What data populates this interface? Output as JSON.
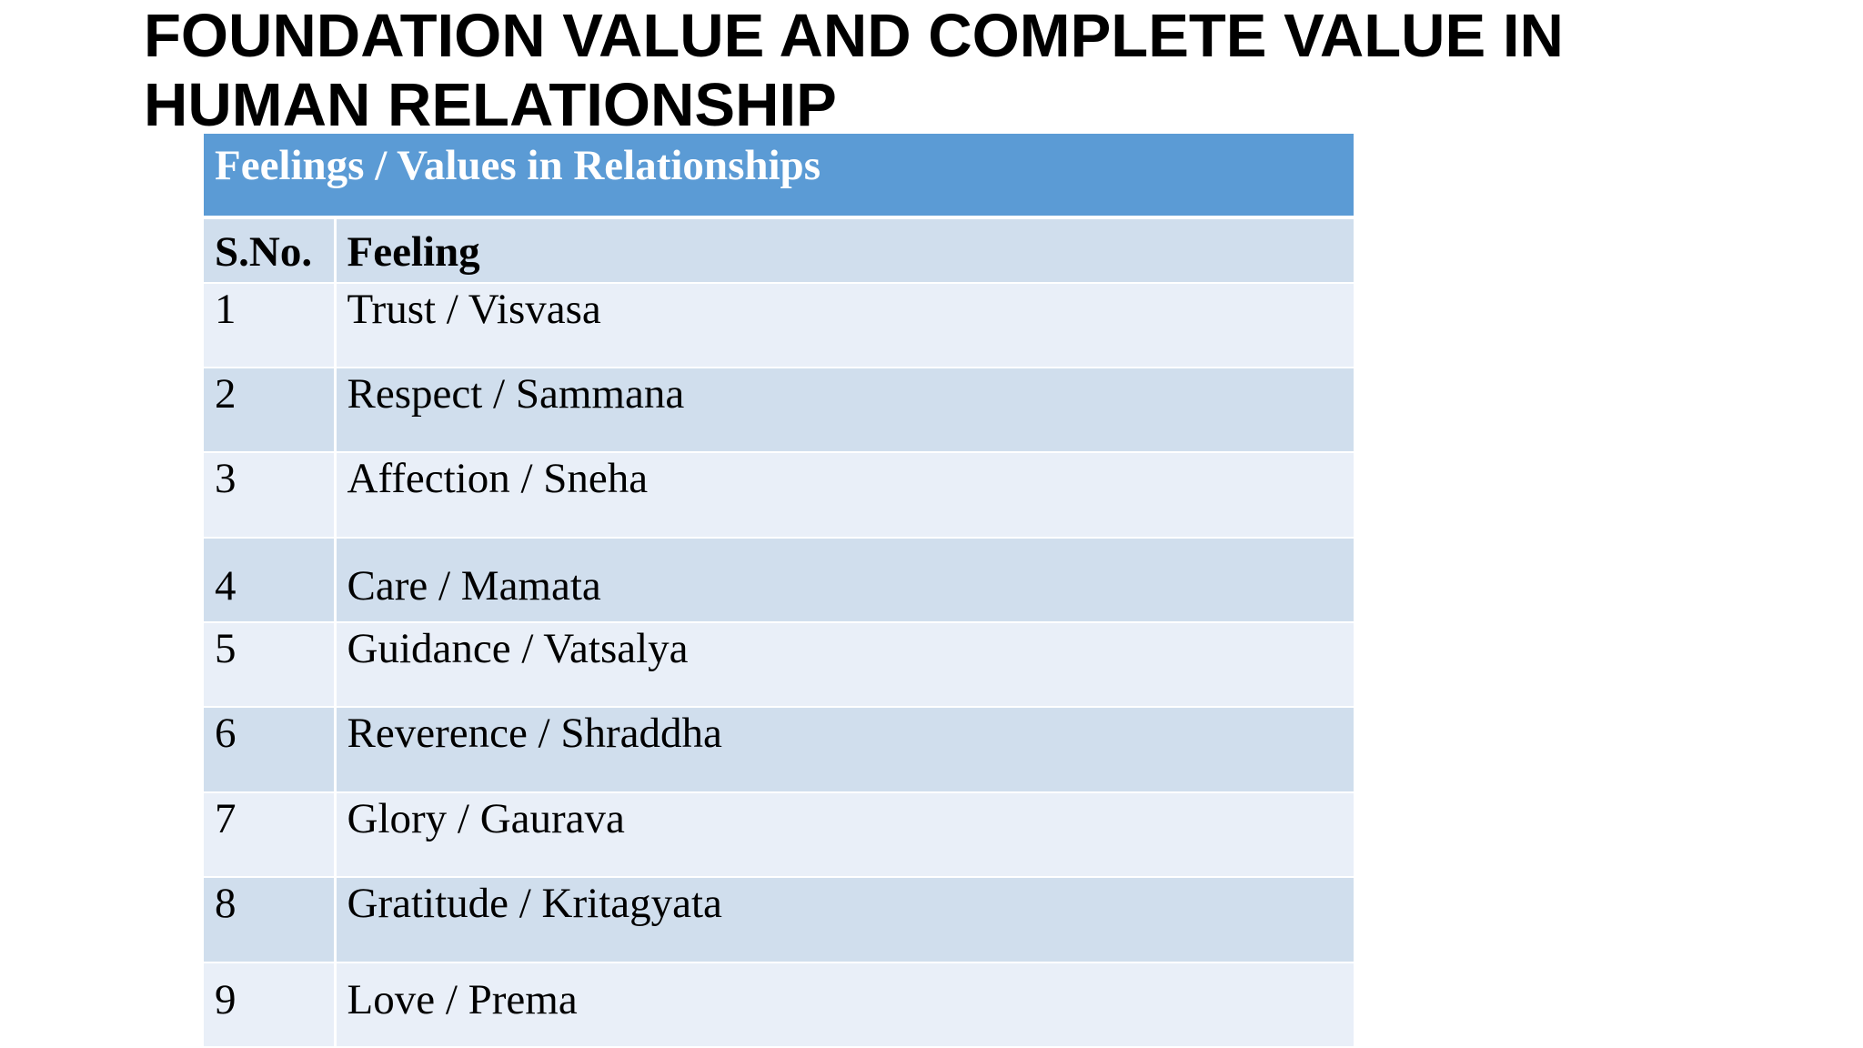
{
  "slide": {
    "title_line1": "FOUNDATION VALUE AND COMPLETE VALUE IN",
    "title_line2": "HUMAN RELATIONSHIP"
  },
  "table": {
    "caption": "Feelings / Values in Relationships",
    "headers": {
      "sno": "S.No.",
      "feeling": "Feeling"
    },
    "rows": [
      {
        "sno": "1",
        "feeling": "Trust / Visvasa"
      },
      {
        "sno": "2",
        "feeling": "Respect / Sammana"
      },
      {
        "sno": "3",
        "feeling": "Affection / Sneha"
      },
      {
        "sno": "4",
        "feeling": "Care / Mamata"
      },
      {
        "sno": "5",
        "feeling": "Guidance / Vatsalya"
      },
      {
        "sno": "6",
        "feeling": "Reverence / Shraddha"
      },
      {
        "sno": "7",
        "feeling": "Glory / Gaurava"
      },
      {
        "sno": "8",
        "feeling": "Gratitude / Kritagyata"
      },
      {
        "sno": "9",
        "feeling": "Love / Prema"
      }
    ],
    "colors": {
      "header_bg": "#5b9bd5",
      "row_dark": "#d0deed",
      "row_light": "#e9eff8"
    }
  }
}
